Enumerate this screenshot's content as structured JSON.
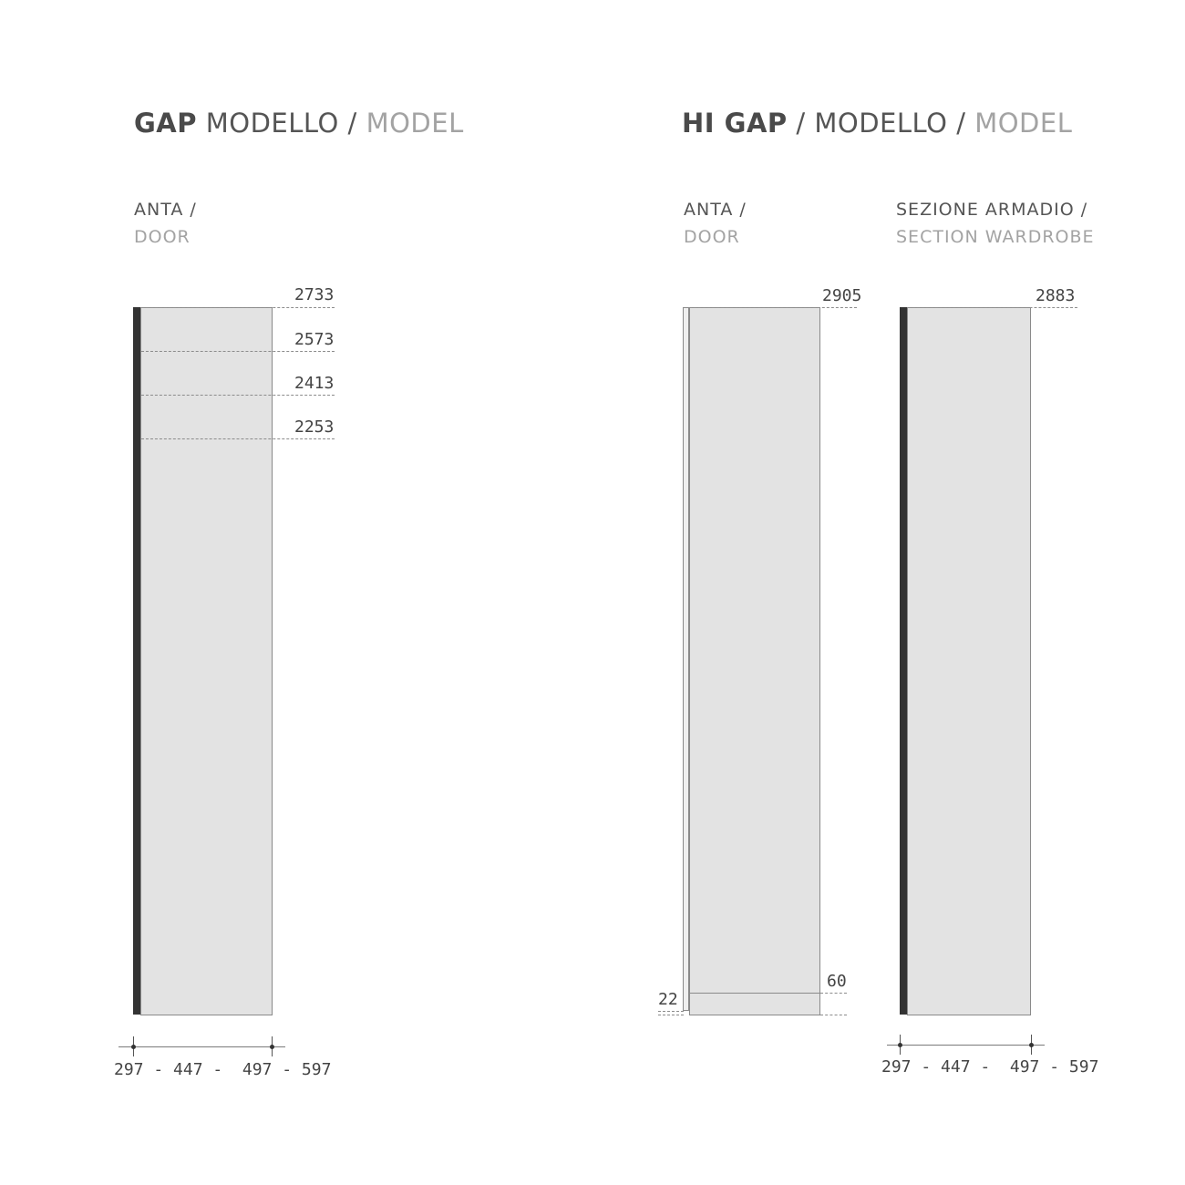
{
  "gap": {
    "title_bold": "GAP",
    "title_mid": " MODELLO / ",
    "title_light": "MODEL",
    "door_it": "ANTA /",
    "door_en": "DOOR",
    "heights": [
      "2733",
      "2573",
      "2413",
      "2253"
    ],
    "widths": "297 - 447 -  497 - 597"
  },
  "higap": {
    "title_bold": "HI GAP",
    "title_mid": " / MODELLO / ",
    "title_light": "MODEL",
    "door_it": "ANTA /",
    "door_en": "DOOR",
    "section_it": "SEZIONE ARMADIO /",
    "section_en": "SECTION WARDROBE",
    "door_height": "2905",
    "door_bottom": "60",
    "door_offset": "22",
    "section_height": "2883",
    "widths": "297 - 447 -  497 - 597"
  },
  "colors": {
    "panel_fill": "#e3e3e3",
    "profile": "#333333",
    "text_light": "#a3a3a3"
  }
}
